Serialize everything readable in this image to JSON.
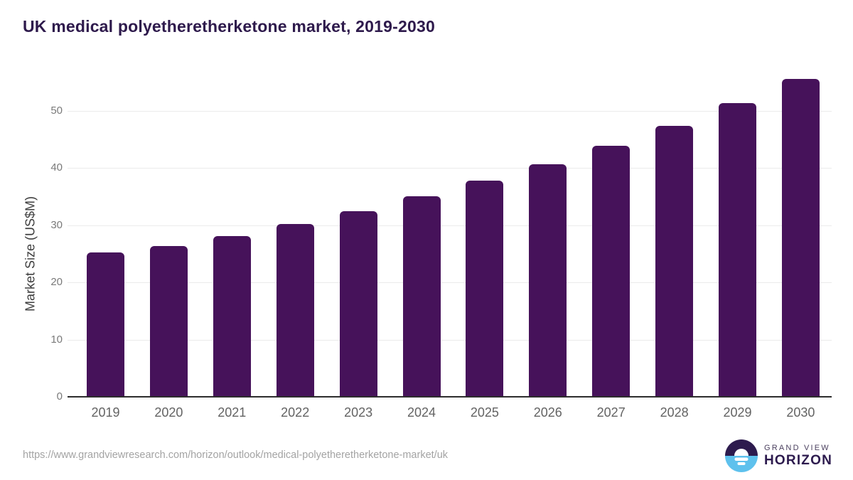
{
  "page": {
    "title": "UK medical polyetheretherketone market, 2019-2030",
    "source_url": "https://www.grandviewresearch.com/horizon/outlook/medical-polyetheretherketone-market/uk"
  },
  "chart_data": {
    "type": "bar",
    "title": "UK medical polyetheretherketone market, 2019-2030",
    "categories": [
      "2019",
      "2020",
      "2021",
      "2022",
      "2023",
      "2024",
      "2025",
      "2026",
      "2027",
      "2028",
      "2029",
      "2030"
    ],
    "values": [
      25.2,
      26.4,
      28.1,
      30.2,
      32.5,
      35.0,
      37.8,
      40.7,
      43.9,
      47.4,
      51.3,
      55.5
    ],
    "xlabel": "",
    "ylabel": "Market Size (US$M)",
    "ylim": [
      0,
      57
    ],
    "yticks": [
      0,
      10,
      20,
      30,
      40,
      50
    ],
    "grid": "horizontal-only",
    "legend": "none",
    "bar_color": "#46125a",
    "gridline_color": "#ebebeb",
    "axis_line_color": "#2d2d2d"
  },
  "logo": {
    "brand_top": "GRAND VIEW",
    "brand_bottom": "HORIZON",
    "icon": "sun-horizon-icon",
    "colors": {
      "purple": "#2d1b4e",
      "blue": "#5ec1ed",
      "white": "#ffffff"
    }
  },
  "colors": {
    "title_text": "#2e1a4c",
    "background": "#ffffff",
    "tick_text": "#7a7a7a",
    "category_text": "#636363",
    "url_text": "#a3a3a3"
  }
}
